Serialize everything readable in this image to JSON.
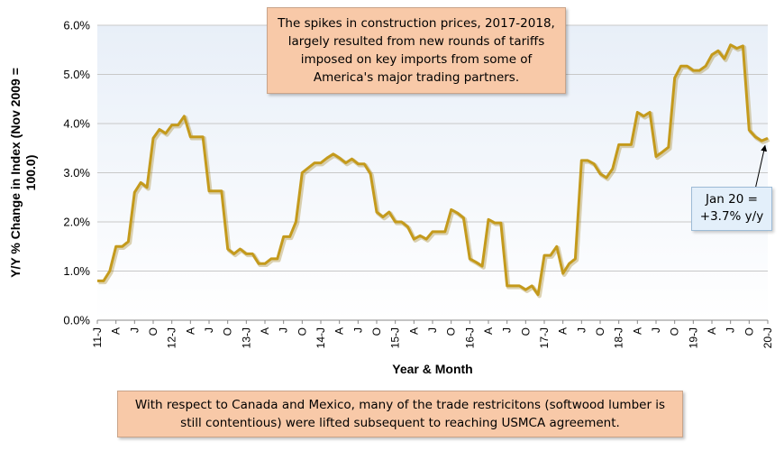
{
  "chart_data": {
    "type": "line",
    "title": "",
    "xlabel": "Year & Month",
    "ylabel": "Y/Y % Change in Index (Nov 2009 = 100.0)",
    "ylim": [
      0,
      6
    ],
    "y_ticks": [
      "0.0%",
      "1.0%",
      "2.0%",
      "3.0%",
      "4.0%",
      "5.0%",
      "6.0%"
    ],
    "x_tick_labels": [
      "11-J",
      "A",
      "J",
      "O",
      "12-J",
      "A",
      "J",
      "O",
      "13-J",
      "A",
      "J",
      "O",
      "14-J",
      "A",
      "J",
      "O",
      "15-J",
      "A",
      "J",
      "O",
      "16-J",
      "A",
      "J",
      "O",
      "17-J",
      "A",
      "J",
      "O",
      "18-J",
      "A",
      "J",
      "O",
      "19-J",
      "A",
      "J",
      "O",
      "20-J"
    ],
    "grid": "horizontal",
    "series": [
      {
        "color": "#c49a1c",
        "x_start": "2011-01",
        "x_end": "2020-01",
        "values": [
          0.8,
          0.8,
          1.0,
          1.5,
          1.5,
          1.6,
          2.6,
          2.8,
          2.7,
          3.7,
          3.88,
          3.8,
          3.97,
          3.97,
          4.15,
          3.73,
          3.73,
          3.73,
          2.63,
          2.63,
          2.63,
          1.45,
          1.35,
          1.45,
          1.35,
          1.35,
          1.15,
          1.15,
          1.25,
          1.25,
          1.7,
          1.7,
          2.0,
          3.0,
          3.1,
          3.2,
          3.2,
          3.3,
          3.38,
          3.3,
          3.2,
          3.28,
          3.18,
          3.18,
          2.98,
          2.2,
          2.1,
          2.2,
          2.0,
          2.0,
          1.9,
          1.65,
          1.72,
          1.65,
          1.8,
          1.8,
          1.8,
          2.25,
          2.18,
          2.08,
          1.25,
          1.18,
          1.1,
          2.05,
          1.98,
          1.98,
          0.7,
          0.7,
          0.7,
          0.62,
          0.7,
          0.52,
          1.32,
          1.32,
          1.5,
          0.95,
          1.15,
          1.25,
          3.25,
          3.25,
          3.18,
          2.98,
          2.9,
          3.08,
          3.57,
          3.57,
          3.57,
          4.23,
          4.15,
          4.23,
          3.33,
          3.42,
          3.52,
          4.93,
          5.17,
          5.17,
          5.08,
          5.08,
          5.17,
          5.4,
          5.48,
          5.32,
          5.6,
          5.53,
          5.58,
          3.87,
          3.73,
          3.65,
          3.7
        ]
      }
    ],
    "annotations": [
      {
        "label": "Jan 20 =",
        "value_text": "+3.7% y/y"
      }
    ]
  },
  "notes": {
    "top": "The spikes in construction prices, 2017-2018, largely resulted from new rounds of tariffs imposed on key imports from some of America's major trading partners.",
    "bottom": "With respect to Canada and Mexico, many of the trade restricitons (softwood lumber is still contentious) were lifted subsequent to reaching USMCA agreement."
  },
  "colors": {
    "line": "#c49a1c",
    "plot_bg_top": "#eef3f9",
    "plot_bg_bottom": "#ffffff",
    "gridline": "#c8c8c8",
    "note_fill": "#f8c9a8",
    "callout_fill": "#e3effa"
  }
}
